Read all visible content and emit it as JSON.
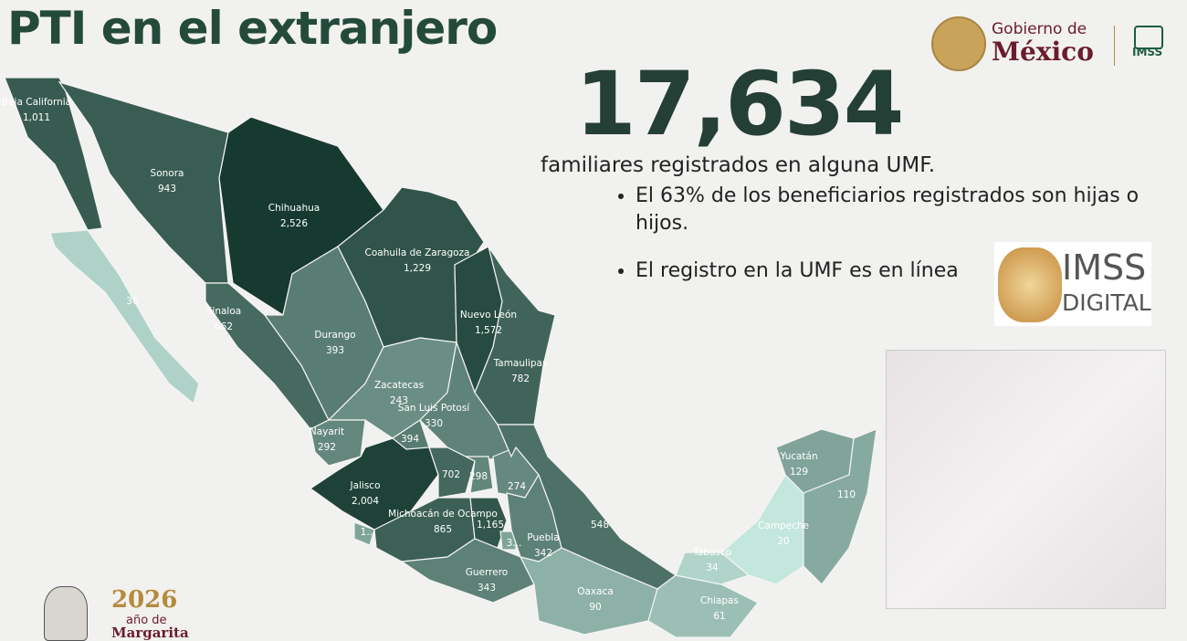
{
  "header": {
    "title": "PTI en el extranjero",
    "logo_top": "Gobierno de",
    "logo_main": "México",
    "logo_imss": "IMSS"
  },
  "summary": {
    "total": "17,634",
    "caption": "familiares registrados en alguna UMF.",
    "bullets": [
      "El 63% de los beneficiarios registrados son hijas o hijos.",
      "El registro en la UMF es en línea"
    ]
  },
  "badge": {
    "line1": "IMSS",
    "line2": "DIGITAL"
  },
  "footer": {
    "year": "2026",
    "line1": "año de",
    "line2": "Margarita"
  },
  "map": {
    "color_low": "#c4e7dd",
    "color_high": "#173a30",
    "states": [
      {
        "name": "Baja California",
        "value": 1011,
        "label": "1,011"
      },
      {
        "value": 36,
        "label": "36"
      },
      {
        "name": "Sonora",
        "value": 943,
        "label": "943"
      },
      {
        "name": "Chihuahua",
        "value": 2526,
        "label": "2,526"
      },
      {
        "name": "Coahuila de Zaragoza",
        "value": 1229,
        "label": "1,229"
      },
      {
        "name": "Nuevo León",
        "value": 1572,
        "label": "1,572"
      },
      {
        "name": "Tamaulipas",
        "value": 782,
        "label": "782"
      },
      {
        "name": "Sinaloa",
        "value": 662,
        "label": "662"
      },
      {
        "name": "Durango",
        "value": 393,
        "label": "393"
      },
      {
        "name": "Zacatecas",
        "value": 243,
        "label": "243"
      },
      {
        "name": "San Luis Potosí",
        "value": 330,
        "label": "330"
      },
      {
        "name": "Nayarit",
        "value": 292,
        "label": "292"
      },
      {
        "name": "Jalisco",
        "value": 2004,
        "label": "2,004"
      },
      {
        "value": 394,
        "label": "394"
      },
      {
        "value": 702,
        "label": "702"
      },
      {
        "value": 298,
        "label": "298"
      },
      {
        "value": 274,
        "label": "274"
      },
      {
        "name": "Michoacán de Ocampo",
        "value": 865,
        "label": "865"
      },
      {
        "label": "1..."
      },
      {
        "value": 1165,
        "label": "1,165"
      },
      {
        "label": "3..."
      },
      {
        "name": "Puebla",
        "value": 342,
        "label": "342"
      },
      {
        "value": 548,
        "label": "548"
      },
      {
        "name": "Guerrero",
        "value": 343,
        "label": "343"
      },
      {
        "name": "Oaxaca",
        "value": 90,
        "label": "90"
      },
      {
        "name": "Chiapas",
        "value": 61,
        "label": "61"
      },
      {
        "name": "Tabasco",
        "value": 34,
        "label": "34"
      },
      {
        "name": "Campeche",
        "value": 20,
        "label": "20"
      },
      {
        "name": "Yucatán",
        "value": 129,
        "label": "129"
      },
      {
        "value": 110,
        "label": "110"
      }
    ]
  }
}
